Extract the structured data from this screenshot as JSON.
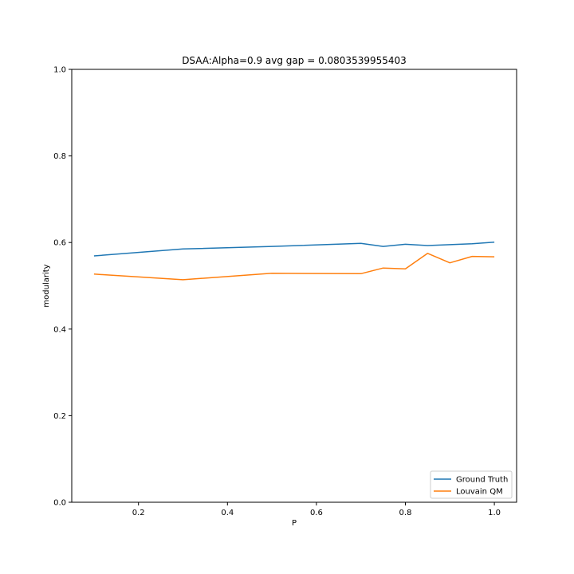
{
  "chart_data": {
    "type": "line",
    "title": "DSAA:Alpha=0.9 avg gap = 0.0803539955403",
    "xlabel": "P",
    "ylabel": "modularity",
    "xlim": [
      0.05,
      1.05
    ],
    "ylim": [
      0.0,
      1.0
    ],
    "xticks": [
      "0.2",
      "0.4",
      "0.6",
      "0.8",
      "1.0"
    ],
    "yticks": [
      "0.0",
      "0.2",
      "0.4",
      "0.6",
      "0.8",
      "1.0"
    ],
    "grid": false,
    "legend_position": "lower right",
    "series": [
      {
        "name": "Ground Truth",
        "color": "#1f77b4",
        "x": [
          0.1,
          0.3,
          0.5,
          0.7,
          0.75,
          0.8,
          0.85,
          0.9,
          0.95,
          1.0
        ],
        "y": [
          0.569,
          0.585,
          0.591,
          0.598,
          0.591,
          0.596,
          0.593,
          0.595,
          0.597,
          0.601
        ]
      },
      {
        "name": "Louvain QM",
        "color": "#ff7f0e",
        "x": [
          0.1,
          0.3,
          0.5,
          0.7,
          0.75,
          0.8,
          0.85,
          0.9,
          0.95,
          1.0
        ],
        "y": [
          0.527,
          0.514,
          0.529,
          0.528,
          0.541,
          0.539,
          0.575,
          0.553,
          0.568,
          0.567
        ]
      }
    ]
  }
}
